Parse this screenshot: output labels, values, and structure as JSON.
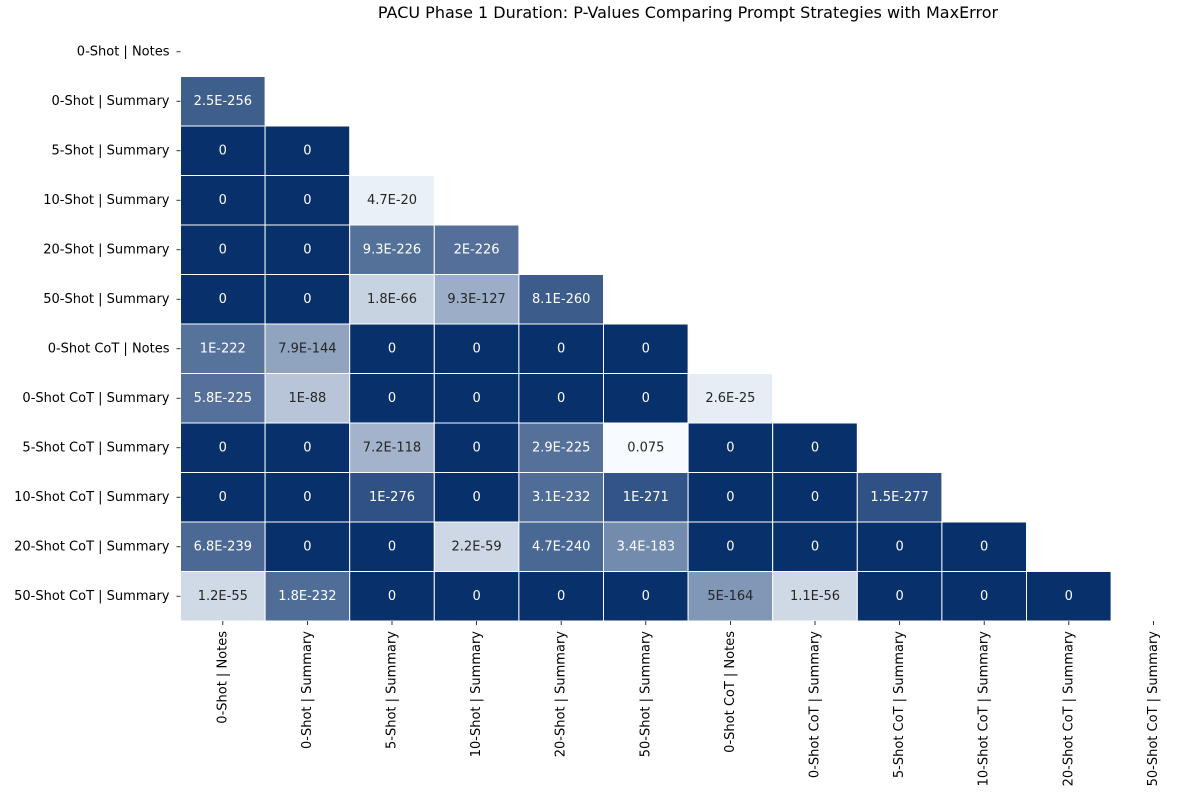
{
  "chart_data": {
    "type": "heatmap",
    "title": "PACU Phase 1 Duration: P-Values Comparing Prompt Strategies with MaxError",
    "xlabel": "",
    "ylabel": "",
    "labels": [
      "0-Shot | Notes",
      "0-Shot | Summary",
      "5-Shot | Summary",
      "10-Shot | Summary",
      "20-Shot | Summary",
      "50-Shot | Summary",
      "0-Shot CoT | Notes",
      "0-Shot CoT | Summary",
      "5-Shot CoT | Summary",
      "10-Shot CoT | Summary",
      "20-Shot CoT | Summary",
      "50-Shot CoT | Summary"
    ],
    "mask": "upper triangle including diagonal",
    "colorbar": false,
    "colormap": [
      "#f7fbff",
      "#08306b"
    ],
    "values": [
      [],
      [
        "2.5E-256"
      ],
      [
        "0",
        "0"
      ],
      [
        "0",
        "0",
        "4.7E-20"
      ],
      [
        "0",
        "0",
        "9.3E-226",
        "2E-226"
      ],
      [
        "0",
        "0",
        "1.8E-66",
        "9.3E-127",
        "8.1E-260"
      ],
      [
        "1E-222",
        "7.9E-144",
        "0",
        "0",
        "0",
        "0"
      ],
      [
        "5.8E-225",
        "1E-88",
        "0",
        "0",
        "0",
        "0",
        "2.6E-25"
      ],
      [
        "0",
        "0",
        "7.2E-118",
        "0",
        "2.9E-225",
        "0.075",
        "0",
        "0"
      ],
      [
        "0",
        "0",
        "1E-276",
        "0",
        "3.1E-232",
        "1E-271",
        "0",
        "0",
        "1.5E-277"
      ],
      [
        "6.8E-239",
        "0",
        "0",
        "2.2E-59",
        "4.7E-240",
        "3.4E-183",
        "0",
        "0",
        "0",
        "0"
      ],
      [
        "1.2E-55",
        "1.8E-232",
        "0",
        "0",
        "0",
        "0",
        "5E-164",
        "1.1E-56",
        "0",
        "0",
        "0"
      ]
    ]
  }
}
